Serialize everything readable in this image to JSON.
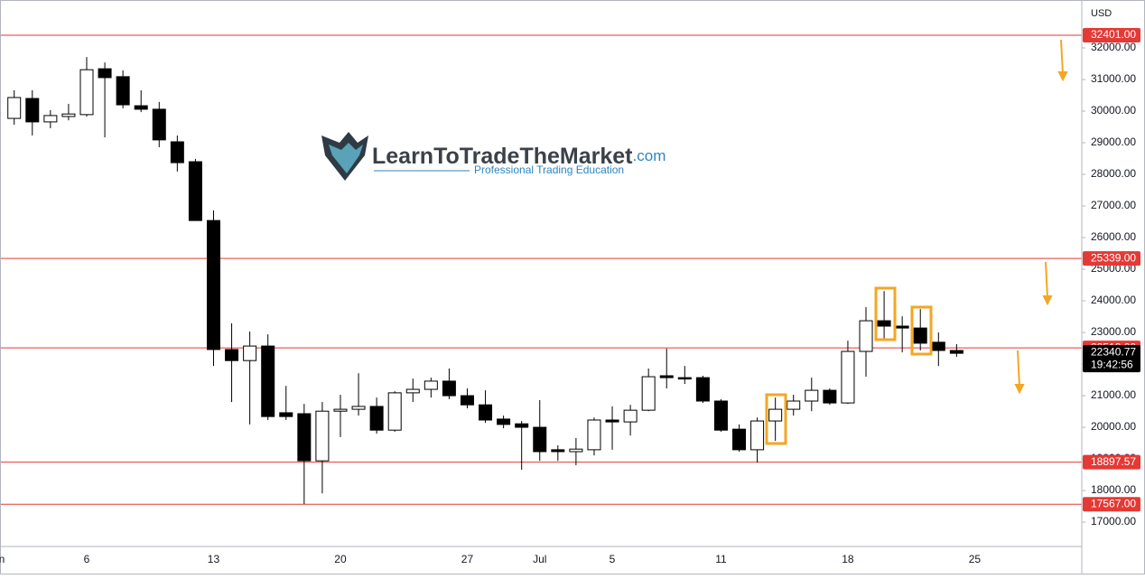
{
  "chart_data": {
    "type": "candlestick",
    "currency": "USD",
    "watermark": {
      "brand": "LearnToTradeTheMarket",
      "domain": ".com",
      "tagline": "Professional Trading Education"
    },
    "categories": [
      "Jun",
      null,
      null,
      null,
      null,
      "6",
      null,
      null,
      null,
      null,
      null,
      null,
      "13",
      null,
      null,
      null,
      null,
      null,
      null,
      "20",
      null,
      null,
      null,
      null,
      null,
      null,
      "27",
      null,
      null,
      null,
      "Jul",
      null,
      null,
      null,
      "5",
      null,
      null,
      null,
      null,
      null,
      "11",
      null,
      null,
      null,
      null,
      null,
      null,
      "18",
      null,
      null,
      null,
      null,
      null,
      null,
      "25"
    ],
    "open": [
      null,
      29770,
      30400,
      29660,
      29830,
      29890,
      31340,
      31090,
      30170,
      30060,
      29030,
      28400,
      26540,
      22460,
      22110,
      22570,
      20460,
      20430,
      18940,
      20510,
      20570,
      20660,
      19910,
      21090,
      21200,
      21460,
      21000,
      20710,
      20260,
      20110,
      20000,
      19290,
      19230,
      19290,
      20230,
      20170,
      20540,
      21630,
      21570,
      21570,
      20830,
      19940,
      19290,
      20200,
      20570,
      20830,
      21170,
      20770,
      22400,
      23370,
      23200,
      23140,
      22690,
      22430,
      null
    ],
    "high": [
      null,
      30660,
      30660,
      30030,
      30230,
      31710,
      31540,
      31290,
      30660,
      30290,
      29230,
      28490,
      26860,
      23290,
      23030,
      22940,
      21310,
      20740,
      20800,
      21030,
      21710,
      20940,
      21140,
      21540,
      21570,
      21860,
      21230,
      21170,
      20370,
      20200,
      20860,
      19430,
      19660,
      20310,
      20660,
      20710,
      21860,
      22490,
      21940,
      21630,
      20890,
      20090,
      20310,
      20940,
      21030,
      21570,
      21230,
      22740,
      23800,
      24310,
      23510,
      23740,
      23000,
      22630,
      null
    ],
    "low": [
      null,
      29570,
      29230,
      29460,
      29710,
      29830,
      29170,
      30090,
      29970,
      28860,
      28090,
      26540,
      21940,
      20800,
      20090,
      20230,
      20230,
      17570,
      17910,
      19690,
      20370,
      19800,
      19860,
      20800,
      20940,
      20890,
      20600,
      20140,
      19970,
      18660,
      18940,
      18940,
      18800,
      19110,
      19290,
      19740,
      20510,
      21230,
      21370,
      20770,
      19860,
      19230,
      18890,
      19570,
      20370,
      20510,
      20710,
      20740,
      21600,
      22800,
      22370,
      22430,
      21940,
      22230,
      null
    ],
    "close": [
      null,
      30430,
      29660,
      29860,
      29910,
      31310,
      31060,
      30200,
      30060,
      29090,
      28370,
      26540,
      22460,
      22110,
      22570,
      20340,
      20340,
      18940,
      20510,
      20570,
      20660,
      19910,
      21090,
      21200,
      21460,
      21000,
      20710,
      20230,
      20090,
      20000,
      19230,
      19230,
      19310,
      20230,
      20170,
      20540,
      21600,
      21570,
      21540,
      20830,
      19910,
      19290,
      20200,
      20570,
      20830,
      21170,
      20770,
      22400,
      23370,
      23200,
      23140,
      22660,
      22430,
      22340.77,
      null
    ],
    "up_color": "#ffffff",
    "down_color": "#000000",
    "ylim": [
      16230,
      33515
    ],
    "yticks": [
      {
        "value": 17000,
        "label": "17000.00"
      },
      {
        "value": 18000,
        "label": "18000.00"
      },
      {
        "value": 19000,
        "label": "19000.00"
      },
      {
        "value": 20000,
        "label": "20000.00"
      },
      {
        "value": 21000,
        "label": "21000.00"
      },
      {
        "value": 22000,
        "label": "22000.00"
      },
      {
        "value": 23000,
        "label": "23000.00"
      },
      {
        "value": 24000,
        "label": "24000.00"
      },
      {
        "value": 25000,
        "label": "25000.00"
      },
      {
        "value": 26000,
        "label": "26000.00"
      },
      {
        "value": 27000,
        "label": "27000.00"
      },
      {
        "value": 28000,
        "label": "28000.00"
      },
      {
        "value": 29000,
        "label": "29000.00"
      },
      {
        "value": 30000,
        "label": "30000.00"
      },
      {
        "value": 31000,
        "label": "31000.00"
      },
      {
        "value": 32000,
        "label": "32000.00"
      }
    ],
    "levels": [
      {
        "value": 32401,
        "label": "32401.00"
      },
      {
        "value": 25339,
        "label": "25339.00"
      },
      {
        "value": 22512,
        "label": "22512.00"
      },
      {
        "value": 18897.57,
        "label": "18897.57"
      },
      {
        "value": 17567,
        "label": "17567.00"
      }
    ],
    "level_color": "#e53935",
    "last_price": {
      "value": 22340.77,
      "label": "22340.77",
      "countdown": "19:42:56"
    },
    "grid": false
  }
}
